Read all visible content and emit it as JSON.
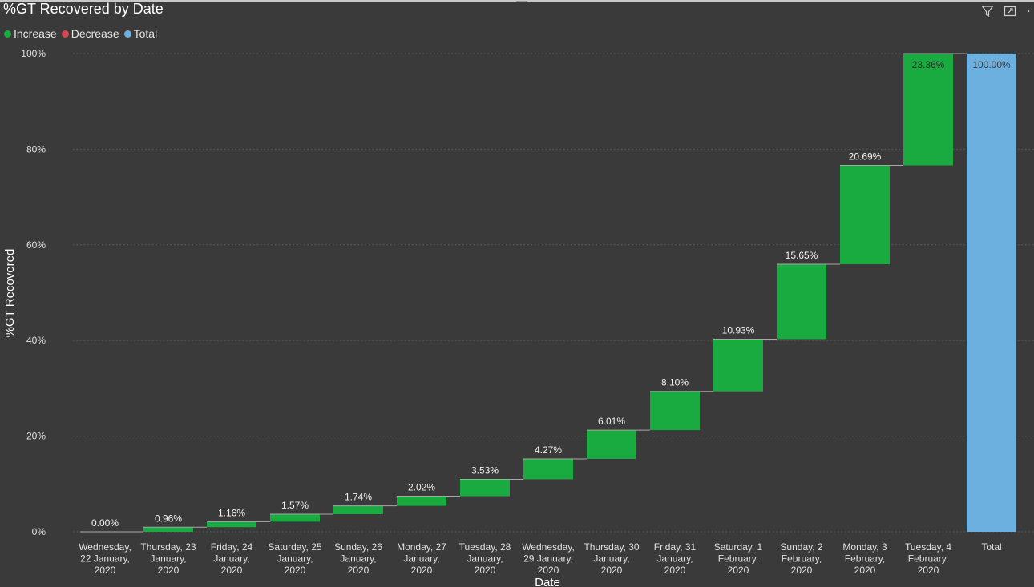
{
  "chart_title": "%GT Recovered by Date",
  "toolbar": {
    "filter_icon": "filter-icon",
    "focus_icon": "focus-mode-icon",
    "more_icon": "more-options-icon"
  },
  "legend": [
    {
      "label": "Increase",
      "color": "#1aab40"
    },
    {
      "label": "Decrease",
      "color": "#d64550"
    },
    {
      "label": "Total",
      "color": "#6cb0e0"
    }
  ],
  "colors": {
    "increase": "#1aab40",
    "decrease": "#d64550",
    "total": "#6cb0e0",
    "background": "#3a3a3a"
  },
  "chart_data": {
    "type": "bar",
    "subtype": "waterfall",
    "title": "%GT Recovered by Date",
    "xlabel": "Date",
    "ylabel": "%GT Recovered",
    "ylim": [
      0,
      100
    ],
    "y_ticks": [
      "0%",
      "20%",
      "40%",
      "60%",
      "80%",
      "100%"
    ],
    "grid": true,
    "legend_position": "top-left",
    "categories": [
      [
        "Wednesday,",
        "22 January,",
        "2020"
      ],
      [
        "Thursday, 23",
        "January,",
        "2020"
      ],
      [
        "Friday, 24",
        "January,",
        "2020"
      ],
      [
        "Saturday, 25",
        "January,",
        "2020"
      ],
      [
        "Sunday, 26",
        "January,",
        "2020"
      ],
      [
        "Monday, 27",
        "January,",
        "2020"
      ],
      [
        "Tuesday, 28",
        "January,",
        "2020"
      ],
      [
        "Wednesday,",
        "29 January,",
        "2020"
      ],
      [
        "Thursday, 30",
        "January,",
        "2020"
      ],
      [
        "Friday, 31",
        "January,",
        "2020"
      ],
      [
        "Saturday, 1",
        "February,",
        "2020"
      ],
      [
        "Sunday, 2",
        "February,",
        "2020"
      ],
      [
        "Monday, 3",
        "February,",
        "2020"
      ],
      [
        "Tuesday, 4",
        "February,",
        "2020"
      ],
      [
        "Total"
      ]
    ],
    "values": [
      0.0,
      0.96,
      1.16,
      1.57,
      1.74,
      2.02,
      3.53,
      4.27,
      6.01,
      8.1,
      10.93,
      15.65,
      20.69,
      23.36,
      100.0
    ],
    "labels": [
      "0.00%",
      "0.96%",
      "1.16%",
      "1.57%",
      "1.74%",
      "2.02%",
      "3.53%",
      "4.27%",
      "6.01%",
      "8.10%",
      "10.93%",
      "15.65%",
      "20.69%",
      "23.36%",
      "100.00%"
    ],
    "kinds": [
      "increase",
      "increase",
      "increase",
      "increase",
      "increase",
      "increase",
      "increase",
      "increase",
      "increase",
      "increase",
      "increase",
      "increase",
      "increase",
      "increase",
      "total"
    ]
  }
}
